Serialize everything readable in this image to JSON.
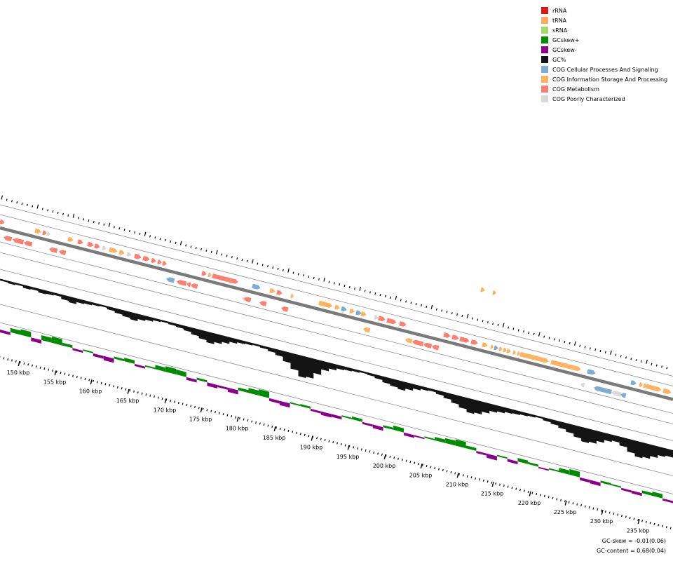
{
  "legend": [
    {
      "label": "rRNA",
      "color": "#d7191c"
    },
    {
      "label": "tRNA",
      "color": "#fdae61"
    },
    {
      "label": "sRNA",
      "color": "#a6d96a"
    },
    {
      "label": "GCskew+",
      "color": "#008b00"
    },
    {
      "label": "GCskew-",
      "color": "#8b008b"
    },
    {
      "label": "GC%",
      "color": "#141414"
    },
    {
      "label": "COG Cellular Processes And Signaling",
      "color": "#7eadd1"
    },
    {
      "label": "COG Information Storage And Processing",
      "color": "#fdb462"
    },
    {
      "label": "COG Metabolism",
      "color": "#fb8072"
    },
    {
      "label": "COG Poorly Characterized",
      "color": "#d9d9d9"
    }
  ],
  "axis": {
    "labels": [
      "150 kbp",
      "155 kbp",
      "160 kbp",
      "165 kbp",
      "170 kbp",
      "175 kbp",
      "180 kbp",
      "185 kbp",
      "190 kbp",
      "195 kbp",
      "200 kbp",
      "205 kbp",
      "210 kbp",
      "215 kbp",
      "220 kbp",
      "225 kbp",
      "230 kbp",
      "235 kbp"
    ]
  },
  "stats": {
    "gc_skew": "GC-skew = -0.01(0.06)",
    "gc_content": "GC-content = 0.68(0.04)"
  }
}
